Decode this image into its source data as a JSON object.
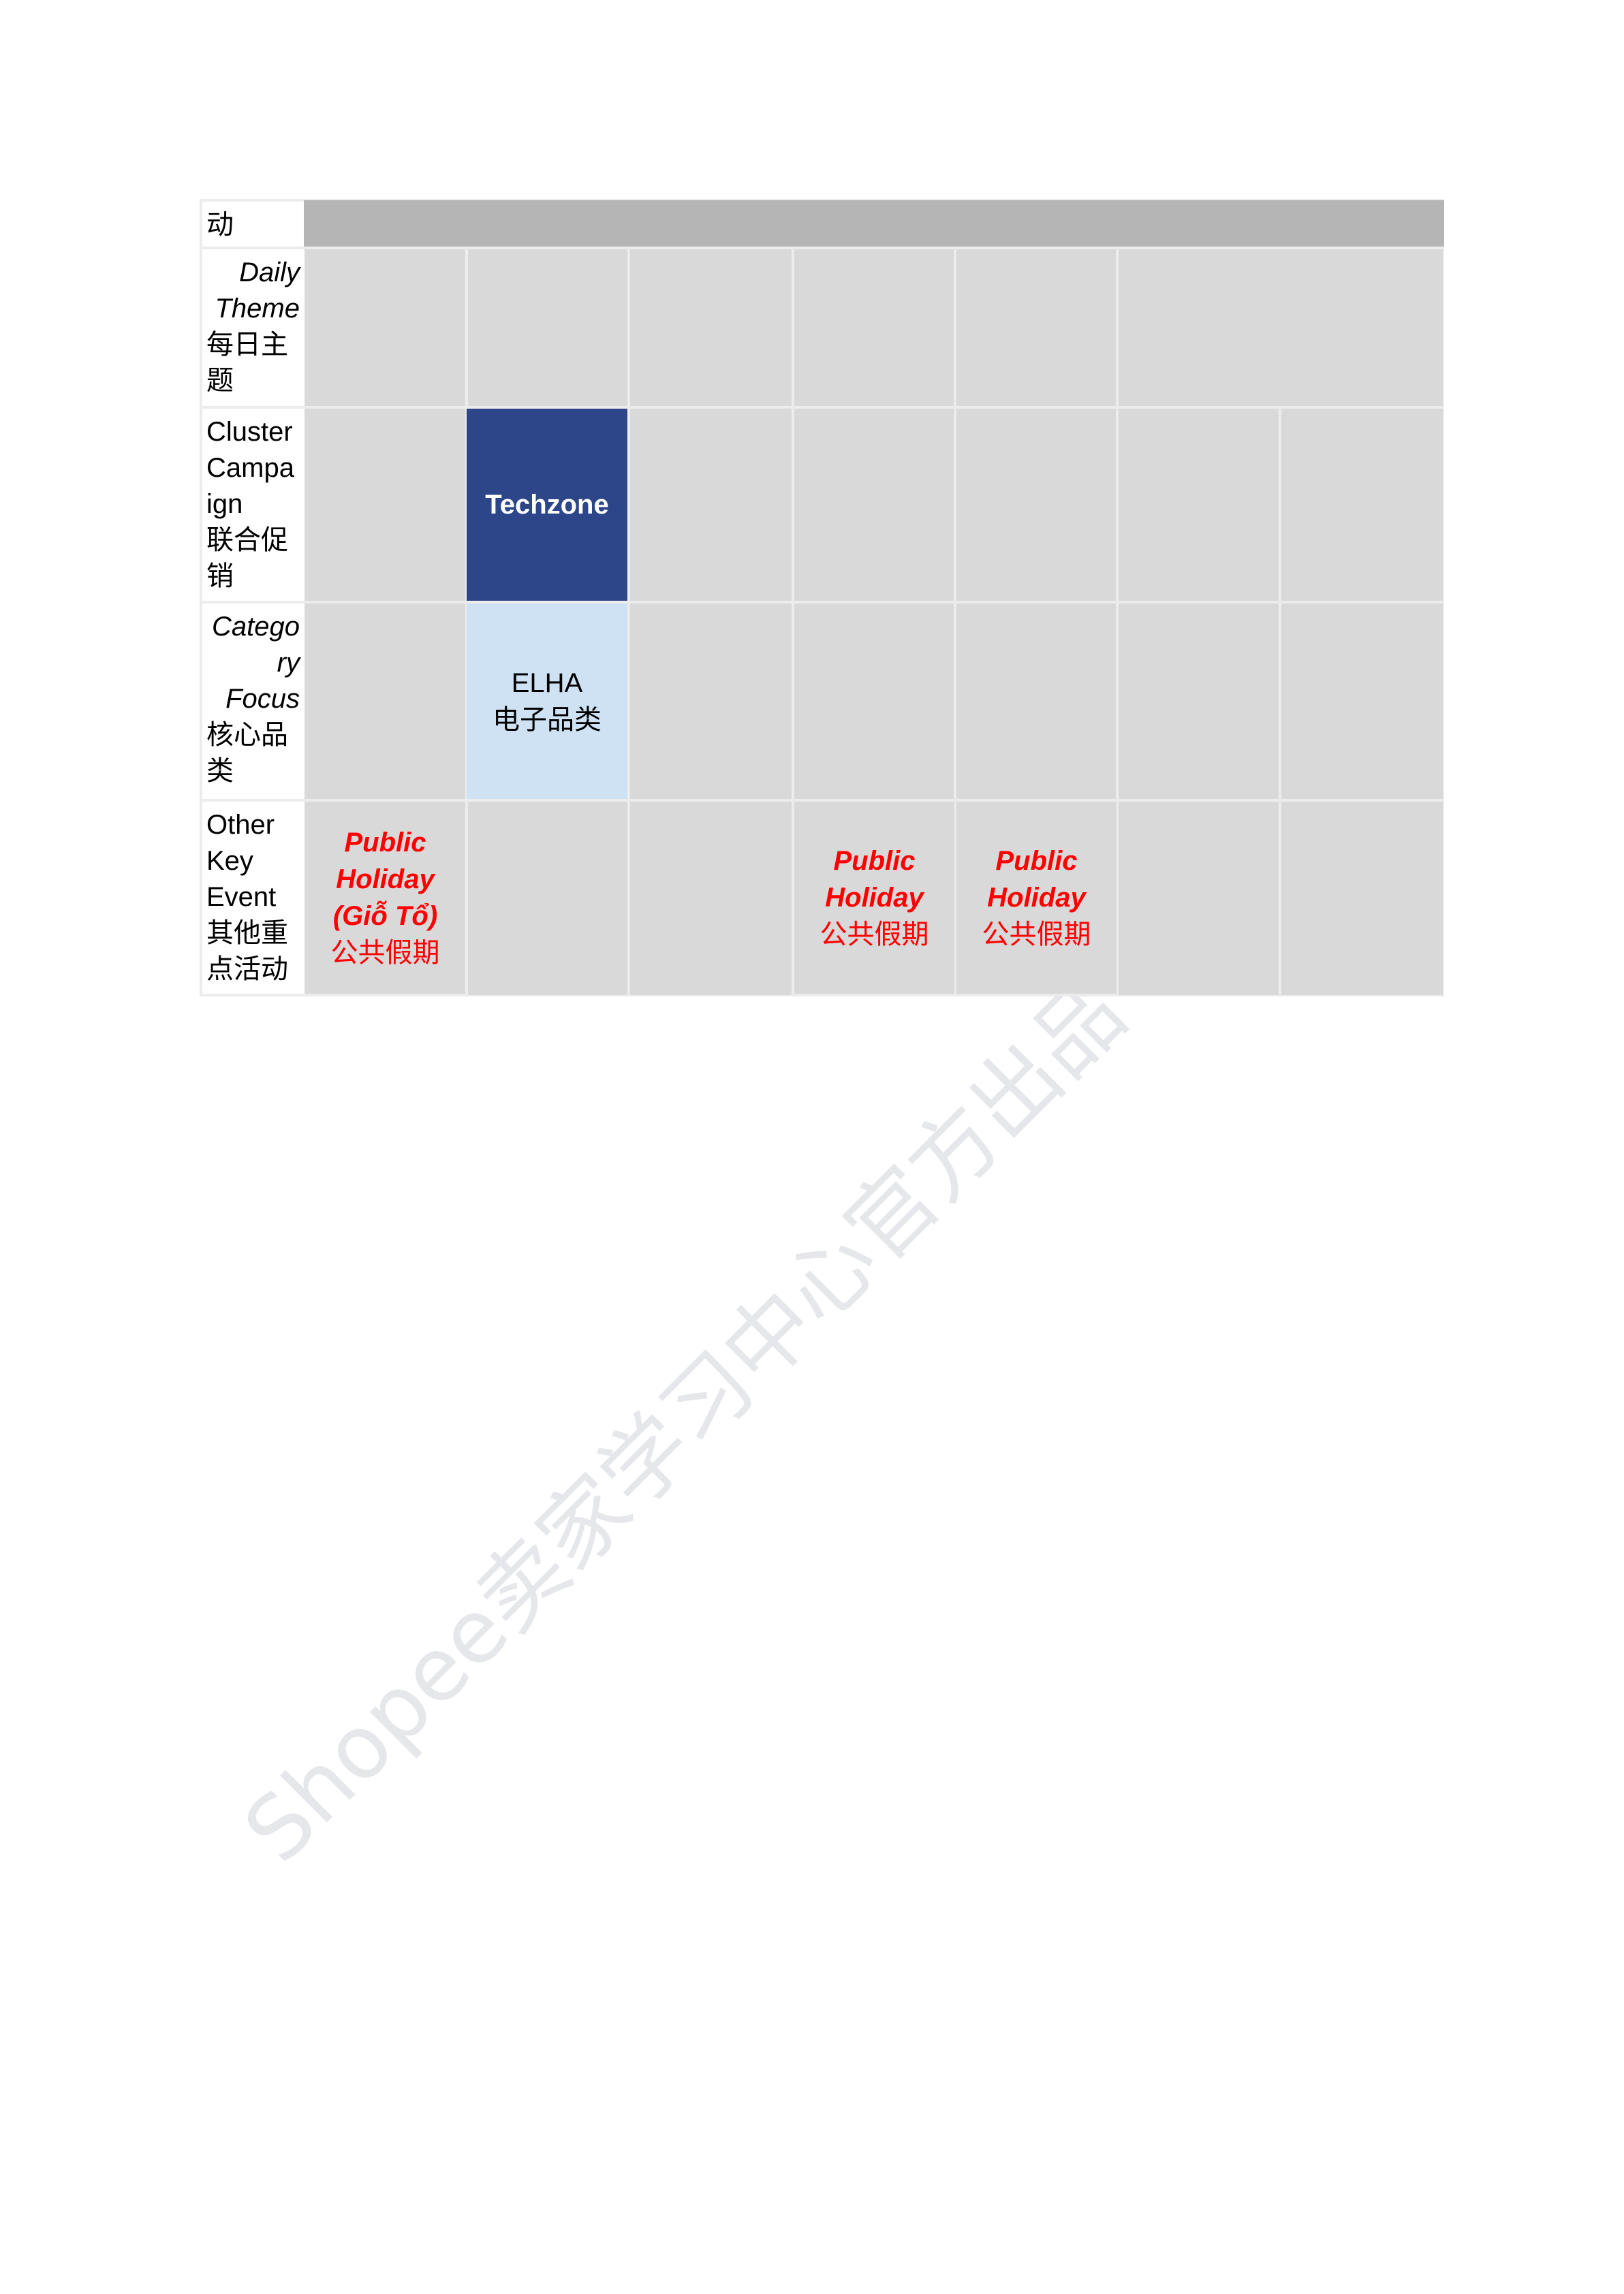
{
  "watermark": "Shopee卖家学习中心官方出品",
  "rows": {
    "header": {
      "label": "动"
    },
    "daily_theme": {
      "label_en_1": "Daily",
      "label_en_2": "Theme",
      "label_cn_1": "每日主",
      "label_cn_2": "题"
    },
    "cluster_campaign": {
      "label_en_1": "Cluster",
      "label_en_2": "Campa",
      "label_en_3": "ign",
      "label_cn_1": "联合促",
      "label_cn_2": "销",
      "cell": "Techzone"
    },
    "category_focus": {
      "label_en_1": "Catego",
      "label_en_2": "ry",
      "label_en_3": "Focus",
      "label_cn_1": "核心品",
      "label_cn_2": "类",
      "cell_en": "ELHA",
      "cell_cn": "电子品类"
    },
    "other_key_event": {
      "label_en_1": "Other",
      "label_en_2": "Key",
      "label_en_3": "Event",
      "label_cn_1": "其他重",
      "label_cn_2": "点活动",
      "events": [
        {
          "en_1": "Public",
          "en_2": "Holiday",
          "en_3": "(Giỗ Tổ)",
          "cn": "公共假期"
        },
        {
          "en_1": "Public",
          "en_2": "Holiday",
          "cn": "公共假期"
        },
        {
          "en_1": "Public",
          "en_2": "Holiday",
          "cn": "公共假期"
        }
      ]
    }
  },
  "colors": {
    "header": "#b5b5b5",
    "cell": "#d9d9d9",
    "techzone": "#2c4689",
    "elha": "#cfe2f3",
    "holiday_text": "#ff0000"
  }
}
